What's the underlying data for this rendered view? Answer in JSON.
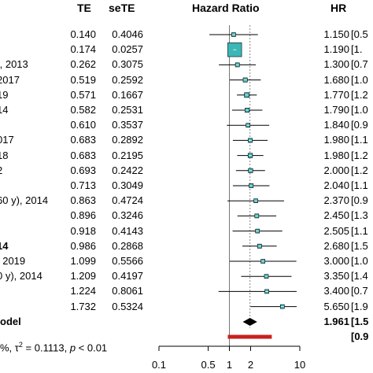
{
  "chart_data": {
    "type": "forest",
    "columns": {
      "te": "TE",
      "sete": "seTE",
      "plot": "Hazard Ratio",
      "hr": "HR"
    },
    "rows": [
      {
        "label": "",
        "te": "0.140",
        "sete": "0.4046",
        "hr": "1.150",
        "ci": "[0.5",
        "value": 1.15,
        "lower": 0.52,
        "upper": 2.54
      },
      {
        "label": "",
        "te": "0.174",
        "sete": "0.0257",
        "hr": "1.190",
        "ci": "[1.",
        "value": 1.19,
        "lower": 1.13,
        "upper": 1.25
      },
      {
        "label": "., 2013",
        "te": "0.262",
        "sete": "0.3075",
        "hr": "1.300",
        "ci": "[0.7",
        "value": 1.3,
        "lower": 0.71,
        "upper": 2.37
      },
      {
        "label": "2017",
        "te": "0.519",
        "sete": "0.2592",
        "hr": "1.680",
        "ci": "[1.0",
        "value": 1.68,
        "lower": 1.01,
        "upper": 2.79
      },
      {
        "label": "19",
        "te": "0.571",
        "sete": "0.1667",
        "hr": "1.770",
        "ci": "[1.2",
        "value": 1.77,
        "lower": 1.28,
        "upper": 2.45
      },
      {
        "label": "14",
        "te": "0.582",
        "sete": "0.2531",
        "hr": "1.790",
        "ci": "[1.0",
        "value": 1.79,
        "lower": 1.09,
        "upper": 2.94
      },
      {
        "label": "",
        "te": "0.610",
        "sete": "0.3537",
        "hr": "1.840",
        "ci": "[0.9",
        "value": 1.84,
        "lower": 0.92,
        "upper": 3.68
      },
      {
        "label": "017",
        "te": "0.683",
        "sete": "0.2892",
        "hr": "1.980",
        "ci": "[1.1",
        "value": 1.98,
        "lower": 1.12,
        "upper": 3.49
      },
      {
        "label": "18",
        "te": "0.683",
        "sete": "0.2195",
        "hr": "1.980",
        "ci": "[1.2",
        "value": 1.98,
        "lower": 1.29,
        "upper": 3.04
      },
      {
        "label": "2",
        "te": "0.693",
        "sete": "0.2422",
        "hr": "2.000",
        "ci": "[1.2",
        "value": 2.0,
        "lower": 1.24,
        "upper": 3.21
      },
      {
        "label": "",
        "te": "0.713",
        "sete": "0.3049",
        "hr": "2.040",
        "ci": "[1.1",
        "value": 2.04,
        "lower": 1.12,
        "upper": 3.71
      },
      {
        "label": "60 y), 2014",
        "te": "0.863",
        "sete": "0.4724",
        "hr": "2.370",
        "ci": "[0.9",
        "value": 2.37,
        "lower": 0.94,
        "upper": 5.98
      },
      {
        "label": "",
        "te": "0.896",
        "sete": "0.3246",
        "hr": "2.450",
        "ci": "[1.3",
        "value": 2.45,
        "lower": 1.3,
        "upper": 4.63
      },
      {
        "label": "",
        "te": "0.918",
        "sete": "0.4143",
        "hr": "2.505",
        "ci": "[1.1",
        "value": 2.505,
        "lower": 1.11,
        "upper": 5.64
      },
      {
        "label": "14",
        "te": "0.986",
        "sete": "0.2868",
        "hr": "2.680",
        "ci": "[1.5",
        "value": 2.68,
        "lower": 1.53,
        "upper": 4.7,
        "bold_label": true
      },
      {
        "label": ", 2019",
        "te": "1.099",
        "sete": "0.5566",
        "hr": "3.000",
        "ci": "[1.0",
        "value": 3.0,
        "lower": 1.01,
        "upper": 8.93
      },
      {
        "label": "0 y), 2014",
        "te": "1.209",
        "sete": "0.4197",
        "hr": "3.350",
        "ci": "[1.4",
        "value": 3.35,
        "lower": 1.47,
        "upper": 7.63
      },
      {
        "label": "",
        "te": "1.224",
        "sete": "0.8061",
        "hr": "3.400",
        "ci": "[0.7",
        "value": 3.4,
        "lower": 0.7,
        "upper": 16.5
      },
      {
        "label": "",
        "te": "1.732",
        "sete": "0.5324",
        "hr": "5.650",
        "ci": "[1.9",
        "value": 5.65,
        "lower": 1.99,
        "upper": 16.0
      }
    ],
    "pooled": {
      "label": "odel",
      "hr": "1.961",
      "ci": "[1.5",
      "value": 1.961,
      "lower": 1.55,
      "upper": 2.48
    },
    "prediction_interval": {
      "ci": "[0.9",
      "lower": 0.95,
      "upper": 4.0
    },
    "heterogeneity_prefix": "%, τ",
    "heterogeneity_sup": "2",
    "heterogeneity_suffix": " = 0.1113, ",
    "heterogeneity_p": "p",
    "heterogeneity_p_value": " < 0.01",
    "xaxis": {
      "scale": "log",
      "range": [
        0.1,
        10
      ],
      "ticks": [
        0.1,
        0.5,
        1,
        2,
        10
      ],
      "tick_labels": [
        "0.1",
        "0.5",
        "1",
        "2",
        "10"
      ]
    },
    "reference_line": 1,
    "pooled_dashed_line": 1.961,
    "colors": {
      "box": "#3cb7b7",
      "diamond": "#000000",
      "prediction": "#c8201f"
    }
  }
}
